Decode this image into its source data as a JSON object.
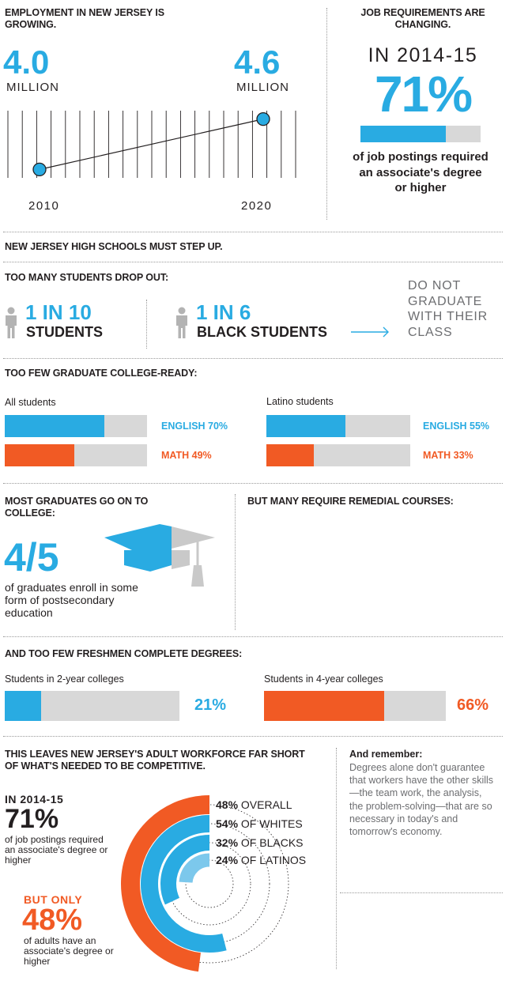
{
  "colors": {
    "blue": "#29abe2",
    "orange": "#f15a24",
    "gray": "#d8d8d8",
    "light_blue": "#7cc8ec"
  },
  "employment": {
    "title": "EMPLOYMENT IN NEW JERSEY IS GROWING.",
    "start_value": "4.0",
    "start_unit": "MILLION",
    "start_year": "2010",
    "end_value": "4.6",
    "end_unit": "MILLION",
    "end_year": "2020"
  },
  "requirements": {
    "title": "JOB REQUIREMENTS ARE CHANGING.",
    "period": "IN 2014-15",
    "percent": "71%",
    "percent_value": 0.71,
    "caption": "of job postings required an associate's degree or higher"
  },
  "step_up": "NEW JERSEY HIGH SCHOOLS MUST STEP UP.",
  "dropout": {
    "title": "TOO MANY STUDENTS DROP OUT:",
    "stat1_ratio": "1 IN 10",
    "stat1_label": "STUDENTS",
    "stat2_ratio": "1 IN 6",
    "stat2_label": "BLACK STUDENTS",
    "outcome": "DO NOT GRADUATE WITH THEIR CLASS",
    "person_icon": "person-icon",
    "arrow_icon": "arrow-right-icon"
  },
  "college_ready": {
    "title": "TOO FEW GRADUATE COLLEGE-READY:",
    "groups": [
      {
        "name": "All students",
        "bars": [
          {
            "label": "ENGLISH 70%",
            "value": 0.7,
            "color": "#29abe2"
          },
          {
            "label": "MATH 49%",
            "value": 0.49,
            "color": "#f15a24"
          }
        ]
      },
      {
        "name": "Latino students",
        "bars": [
          {
            "label": "ENGLISH 55%",
            "value": 0.55,
            "color": "#29abe2"
          },
          {
            "label": "MATH 33%",
            "value": 0.33,
            "color": "#f15a24"
          }
        ]
      }
    ]
  },
  "college_going": {
    "title": "MOST GRADUATES GO ON TO COLLEGE:",
    "fraction": "4/5",
    "caption": "of graduates enroll in some form of postsecondary education",
    "icon": "graduation-cap-icon",
    "remedial_title": "BUT MANY REQUIRE REMEDIAL COURSES:"
  },
  "completion": {
    "title": "AND TOO FEW FRESHMEN COMPLETE DEGREES:",
    "groups": [
      {
        "name": "Students in 2-year colleges",
        "label": "21%",
        "value": 0.21,
        "color": "#29abe2"
      },
      {
        "name": "Students in 4-year colleges",
        "label": "66%",
        "value": 0.66,
        "color": "#f15a24"
      }
    ]
  },
  "workforce": {
    "title": "THIS LEAVES NEW JERSEY'S ADULT WORKFORCE FAR SHORT OF WHAT'S NEEDED TO BE COMPETITIVE.",
    "period": "IN 2014-15",
    "percent": "71%",
    "caption": "of job postings required an associate's degree or higher",
    "but_only": "BUT ONLY",
    "adult_percent": "48%",
    "adult_caption": "of adults have an associate's degree or higher"
  },
  "remember": {
    "title": "And remember:",
    "body": "Degrees alone don't guarantee that workers have the other skills—the team work, the analysis, the problem-solving—that are so necessary in today's and tomorrow's economy."
  },
  "chart_data": [
    {
      "type": "line",
      "x": [
        "2010",
        "2020"
      ],
      "series": [
        {
          "values": [
            4.0,
            4.6
          ]
        }
      ],
      "unit": "MILLION"
    },
    {
      "type": "bar",
      "categories": [
        "All students ENGLISH",
        "All students MATH",
        "Latino students ENGLISH",
        "Latino students MATH"
      ],
      "values": [
        70,
        49,
        55,
        33
      ]
    },
    {
      "type": "bar",
      "categories": [
        "Students in 2-year colleges",
        "Students in 4-year colleges"
      ],
      "values": [
        21,
        66
      ]
    },
    {
      "type": "pie",
      "categories": [
        "OVERALL",
        "OF WHITES",
        "OF BLACKS",
        "OF LATINOS"
      ],
      "values": [
        48,
        54,
        32,
        24
      ],
      "labels": [
        "48%",
        "54%",
        "32%",
        "24%"
      ],
      "colors": [
        "#f15a24",
        "#29abe2",
        "#29abe2",
        "#7cc8ec"
      ]
    }
  ]
}
